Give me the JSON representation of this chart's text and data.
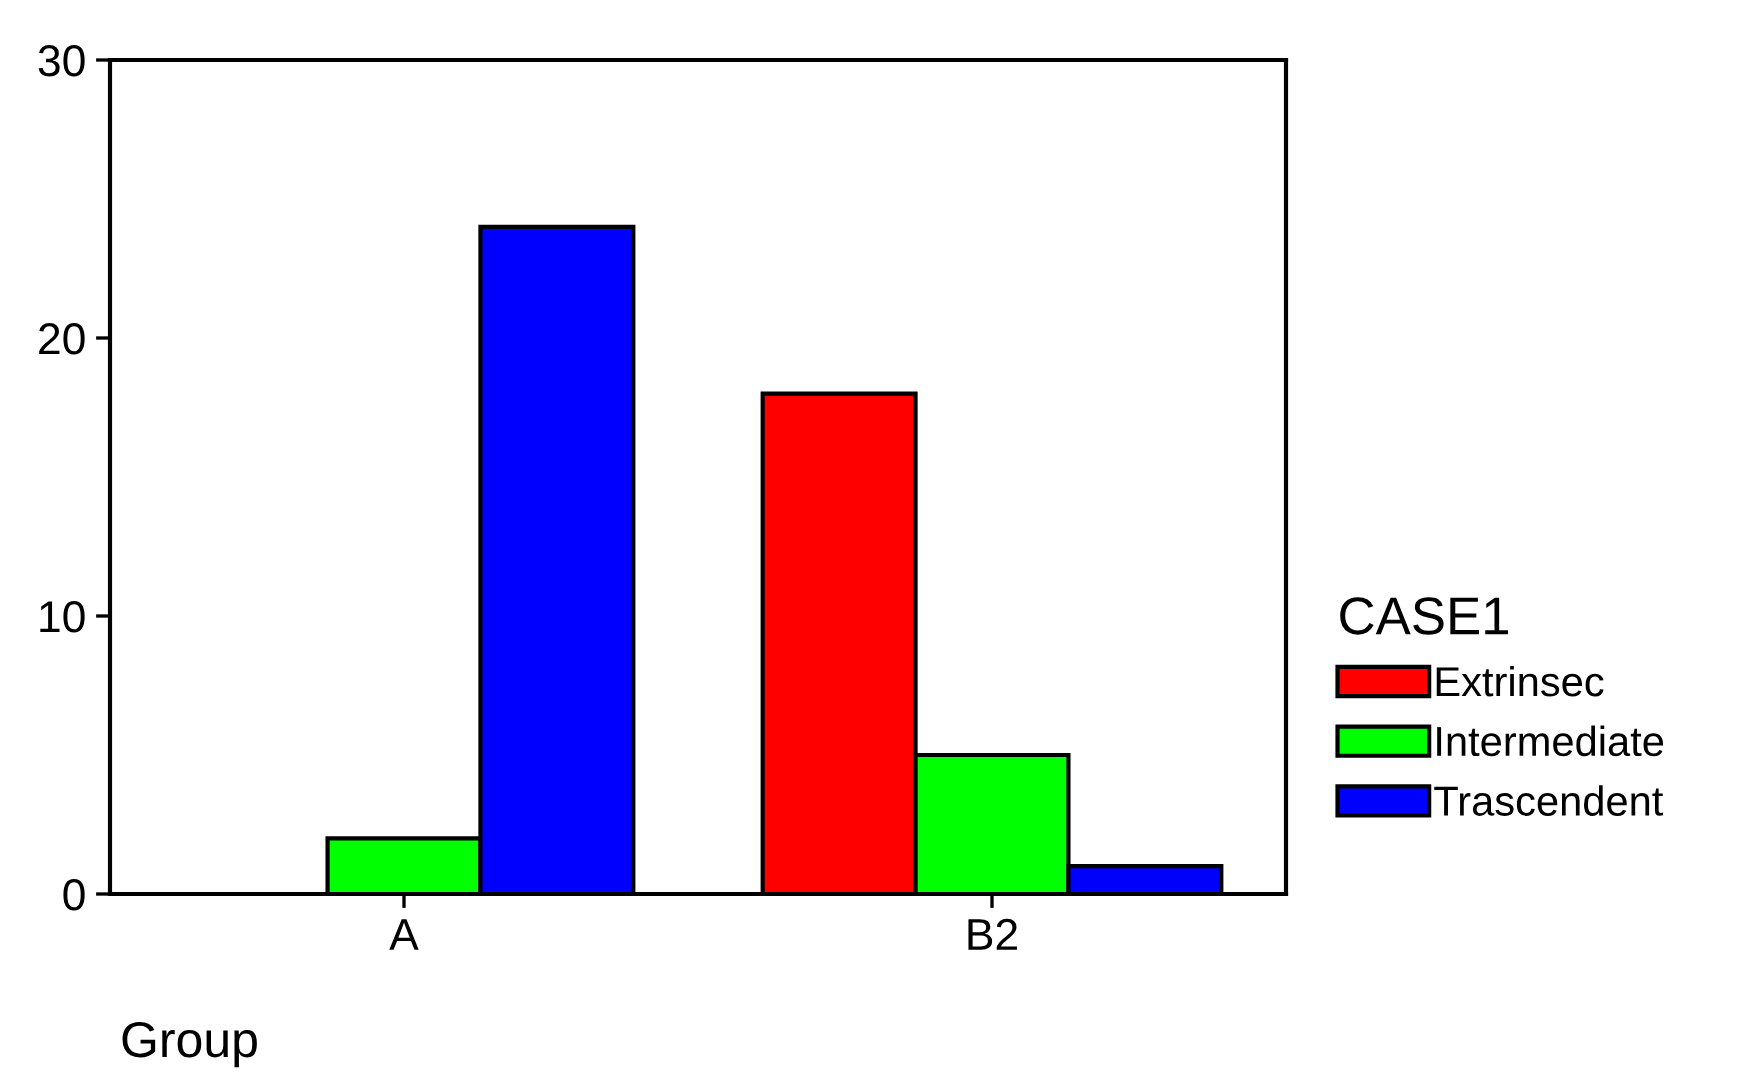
{
  "chart_data": {
    "type": "bar",
    "categories": [
      "A",
      "B2"
    ],
    "series": [
      {
        "name": "Extrinsec",
        "color": "#ff0000",
        "values": [
          null,
          18
        ]
      },
      {
        "name": "Intermediate",
        "color": "#00ff00",
        "values": [
          2,
          5
        ]
      },
      {
        "name": "Trascendent",
        "color": "#0000ff",
        "values": [
          24,
          1
        ]
      }
    ],
    "ylim": [
      0,
      30
    ],
    "yticks": [
      0,
      10,
      20,
      30
    ],
    "grid": false,
    "legend": "right",
    "legend_title": "CASE1",
    "xlabel": "Group"
  }
}
